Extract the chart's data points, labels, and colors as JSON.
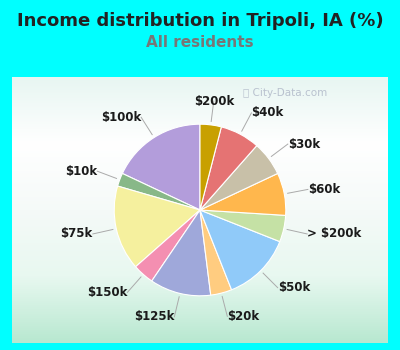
{
  "title": "Income distribution in Tripoli, IA (%)",
  "subtitle": "All residents",
  "bg_outer": "#00FFFF",
  "bg_inner_top": "#e0f5f0",
  "bg_inner_bottom": "#c8eedc",
  "watermark": "ⓘ City-Data.com",
  "labels": [
    "$100k",
    "$10k",
    "$75k",
    "$150k",
    "$125k",
    "$20k",
    "$50k",
    "> $200k",
    "$60k",
    "$30k",
    "$40k",
    "$200k"
  ],
  "values": [
    18.0,
    2.5,
    16.0,
    4.0,
    11.5,
    4.0,
    13.0,
    5.0,
    8.0,
    6.5,
    7.5,
    4.0
  ],
  "colors": [
    "#b39ddb",
    "#88b888",
    "#f5f09e",
    "#f48fb1",
    "#9fa8da",
    "#ffcc80",
    "#90caf9",
    "#c5e1a5",
    "#ffb74d",
    "#c8c0a8",
    "#e57373",
    "#c8a000"
  ],
  "startangle": 90,
  "title_fontsize": 13,
  "subtitle_fontsize": 11,
  "label_fontsize": 8.5,
  "subtitle_color": "#777777",
  "title_color": "#222222"
}
